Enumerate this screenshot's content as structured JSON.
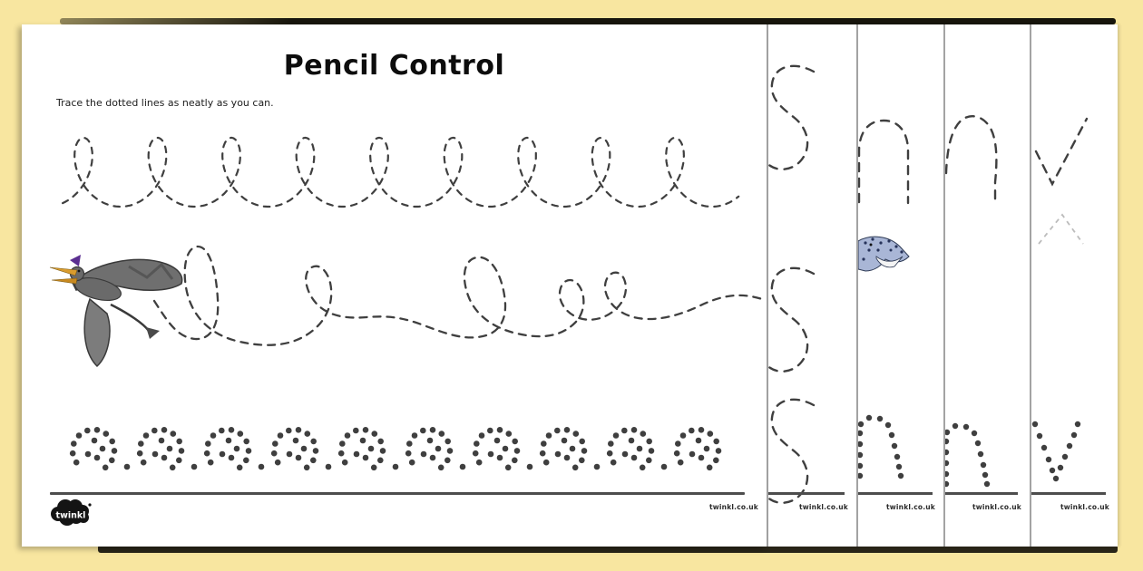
{
  "header": {
    "title": "Pencil Control",
    "instruction": "Trace the dotted lines as neatly as you can."
  },
  "footer": {
    "logo_text": "twinkl",
    "website": "twinkl.co.uk"
  },
  "main_page": {
    "illustration": "pterosaur",
    "patterns": [
      "dashed-loop-row",
      "dashed-flight-path",
      "dotted-letter-e-row"
    ]
  },
  "stacked_pages": [
    {
      "pattern": "dashed-s-curves",
      "website": "twinkl.co.uk"
    },
    {
      "pattern": "dashed-n-arch",
      "illustration": "spotted-dinosaur-head",
      "website": "twinkl.co.uk"
    },
    {
      "pattern": "dashed-n-arch",
      "website": "twinkl.co.uk"
    },
    {
      "pattern": "dashed-v-zigzag",
      "website": "twinkl.co.uk"
    }
  ],
  "colors": {
    "background": "#f8e6a0",
    "page": "#ffffff",
    "trace": "#3f3f3f",
    "baseline": "#4d4d4d",
    "logo": "#141414",
    "beak": "#d99c2e",
    "crest": "#5b2f91",
    "dino_blue": "#a9b6d6"
  }
}
